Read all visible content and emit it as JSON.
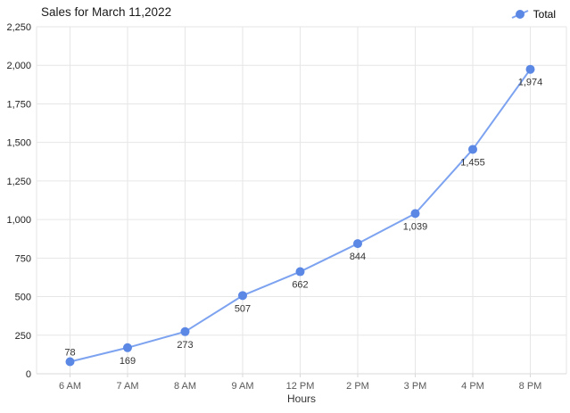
{
  "chart_data": {
    "type": "line",
    "title": "Sales for March 11,2022",
    "xlabel": "Hours",
    "ylabel": "",
    "categories": [
      "6 AM",
      "7 AM",
      "8 AM",
      "9 AM",
      "12 PM",
      "2 PM",
      "3 PM",
      "4 PM",
      "8 PM"
    ],
    "series": [
      {
        "name": "Total",
        "values": [
          78,
          169,
          273,
          507,
          662,
          844,
          1039,
          1455,
          1974
        ],
        "point_labels": [
          "78",
          "169",
          "273",
          "507",
          "662",
          "844",
          "1,039",
          "1,455",
          "1,974"
        ]
      }
    ],
    "ylim": [
      0,
      2250
    ],
    "yticks": [
      0,
      250,
      500,
      750,
      1000,
      1250,
      1500,
      1750,
      2000,
      2250
    ],
    "ytick_labels": [
      "0",
      "250",
      "500",
      "750",
      "1,000",
      "1,250",
      "1,500",
      "1,750",
      "2,000",
      "2,250"
    ],
    "grid": true,
    "legend_position": "top-right",
    "colors": {
      "series_line": "#7da3f0",
      "series_point": "#5b87e5",
      "grid": "#e6e6e6",
      "axis_line": "#d9d9d9",
      "y_tick_text": "#222222",
      "x_tick_text": "#595959",
      "point_label_text": "#333333",
      "title_text": "#1a1a1a",
      "legend_text": "#000000",
      "xlabel_text": "#333333",
      "background": "#ffffff"
    }
  }
}
